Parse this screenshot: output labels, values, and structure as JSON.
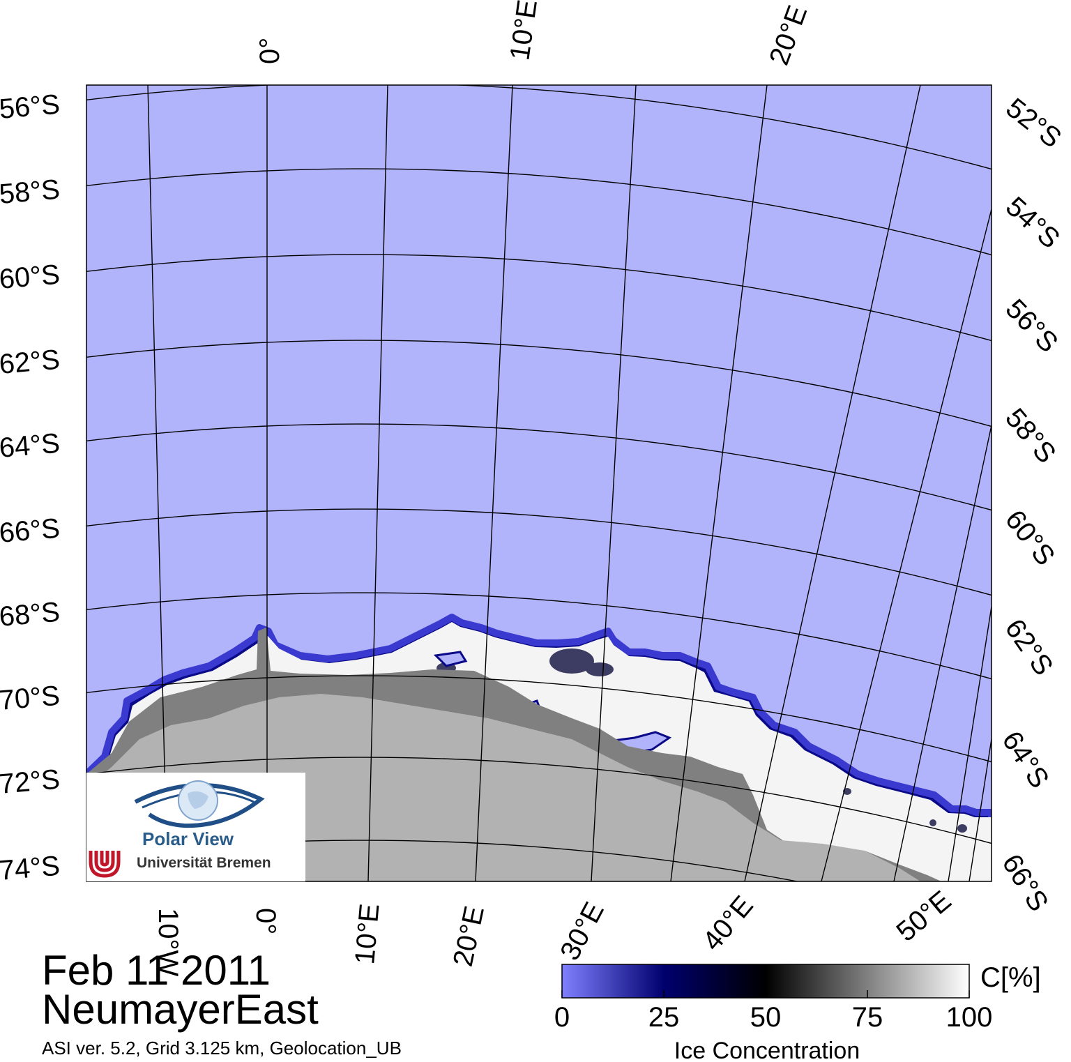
{
  "title": {
    "date": "Feb 11 2011",
    "region": "NeumayerEast"
  },
  "subtitle": "ASI ver. 5.2,  Grid 3.125 km, Geolocation_UB",
  "colorbar": {
    "unit": "C[%]",
    "title": "Ice Concentration",
    "ticks": [
      "0",
      "25",
      "50",
      "75",
      "100"
    ],
    "colors": [
      "#8080ff",
      "#00006e",
      "#000000",
      "#808080",
      "#ffffff"
    ]
  },
  "logo": {
    "name": "Polar View",
    "institution": "Universität Bremen"
  },
  "map": {
    "colors": {
      "ocean": "#b1b3fb",
      "land": "#b2b2b2",
      "ice_shelf": "#808080",
      "sea_ice": "#f4f4f4",
      "ice_edge": "#0a0a88"
    },
    "left_lat_labels": [
      "56°S",
      "58°S",
      "60°S",
      "62°S",
      "64°S",
      "66°S",
      "68°S",
      "70°S",
      "72°S",
      "74°S"
    ],
    "right_lat_labels": [
      "52°S",
      "54°S",
      "56°S",
      "58°S",
      "60°S",
      "62°S",
      "64°S",
      "66°S"
    ],
    "top_lon_labels": [
      "0°",
      "10°E",
      "20°E"
    ],
    "bottom_lon_labels": [
      "10°W",
      "0°",
      "10°E",
      "20°E",
      "30°E",
      "40°E",
      "50°E"
    ]
  }
}
